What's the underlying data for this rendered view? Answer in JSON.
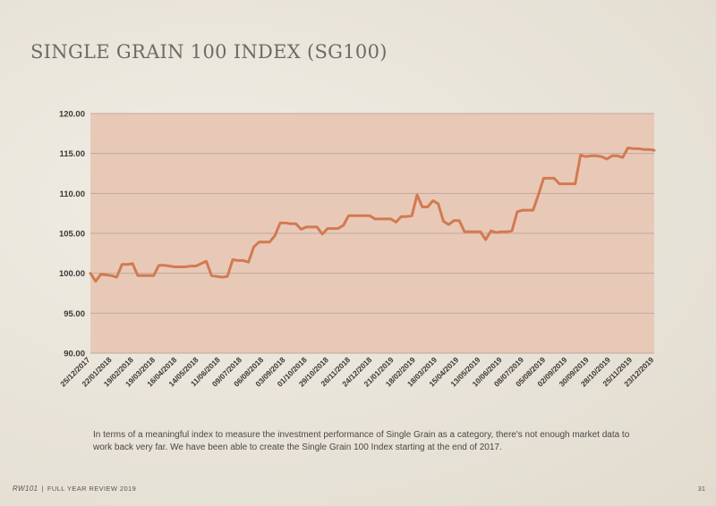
{
  "page": {
    "title": "SINGLE GRAIN 100 INDEX (SG100)",
    "caption": "In terms of a meaningful index to measure the investment performance of Single Grain as a category, there's not enough market data to work back very far. We have been able to create the Single Grain 100 Index starting at the end of 2017.",
    "footer_brand": "RW101",
    "footer_separator": "|",
    "footer_text": "FULL YEAR REVIEW 2019",
    "page_number": "31"
  },
  "colors": {
    "plot_background": "#e8c9b8",
    "line": "#d27a50",
    "grid": "#bfa89a",
    "watermark": "#5a3020"
  },
  "chart_data": {
    "type": "line",
    "title": "",
    "xlabel": "",
    "ylabel": "",
    "ylim": [
      90,
      120
    ],
    "yticks": [
      "90.00",
      "95.00",
      "100.00",
      "105.00",
      "110.00",
      "115.00",
      "120.00"
    ],
    "grid": "horizontal",
    "x_tick_labels": [
      "25/12/2017",
      "22/01/2018",
      "19/02/2018",
      "19/03/2018",
      "16/04/2018",
      "14/05/2018",
      "11/06/2018",
      "09/07/2018",
      "06/08/2018",
      "03/09/2018",
      "01/10/2018",
      "29/10/2018",
      "26/11/2018",
      "24/12/2018",
      "21/01/2019",
      "18/02/2019",
      "18/03/2019",
      "15/04/2019",
      "13/05/2019",
      "10/06/2019",
      "08/07/2019",
      "05/08/2019",
      "02/09/2019",
      "30/09/2019",
      "28/10/2019",
      "25/11/2019",
      "23/12/2019"
    ],
    "series": [
      {
        "values": [
          100.0,
          99.0,
          99.9,
          99.8,
          99.7,
          99.5,
          101.1,
          101.1,
          101.2,
          99.7,
          99.7,
          99.7,
          99.7,
          101.0,
          101.0,
          100.9,
          100.8,
          100.8,
          100.8,
          100.9,
          100.9,
          101.2,
          101.5,
          99.7,
          99.6,
          99.5,
          99.6,
          101.7,
          101.6,
          101.6,
          101.4,
          103.3,
          103.9,
          103.9,
          103.9,
          104.7,
          106.3,
          106.3,
          106.2,
          106.2,
          105.5,
          105.8,
          105.8,
          105.8,
          104.9,
          105.6,
          105.6,
          105.6,
          106.0,
          107.2,
          107.2,
          107.2,
          107.2,
          107.2,
          106.8,
          106.8,
          106.8,
          106.8,
          106.4,
          107.1,
          107.1,
          107.2,
          109.8,
          108.3,
          108.3,
          109.1,
          108.7,
          106.5,
          106.1,
          106.6,
          106.6,
          105.2,
          105.2,
          105.2,
          105.2,
          104.2,
          105.3,
          105.1,
          105.2,
          105.2,
          105.3,
          107.7,
          107.9,
          107.9,
          107.9,
          109.8,
          111.9,
          111.9,
          111.9,
          111.2,
          111.2,
          111.2,
          111.2,
          114.8,
          114.6,
          114.7,
          114.7,
          114.6,
          114.3,
          114.7,
          114.7,
          114.5,
          115.7,
          115.6,
          115.6,
          115.5,
          115.5,
          115.4
        ]
      }
    ]
  }
}
